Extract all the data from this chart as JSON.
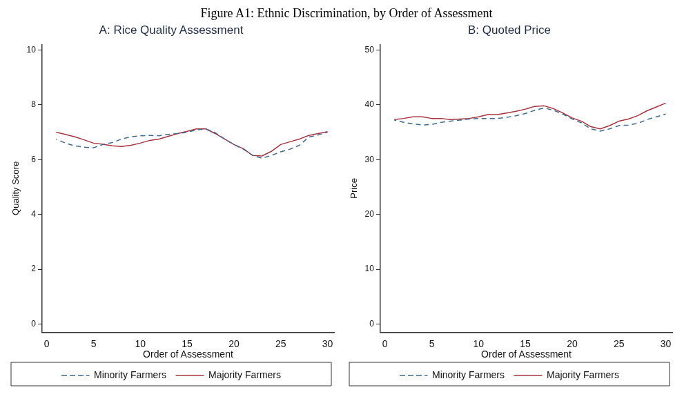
{
  "chart_data": [
    {
      "type": "line",
      "title": "A: Rice Quality Assessment",
      "annotations": [
        "Figure A1: Ethnic Discrimination, by Order of Assessment"
      ],
      "xlabel": "Order of Assessment",
      "ylabel": "Quality Score",
      "x": [
        1,
        2,
        3,
        4,
        5,
        6,
        7,
        8,
        9,
        10,
        11,
        12,
        13,
        14,
        15,
        16,
        17,
        18,
        19,
        20,
        21,
        22,
        23,
        24,
        25,
        26,
        27,
        28,
        29,
        30
      ],
      "series": [
        {
          "name": "Minority Farmers",
          "color": "#3e6a8e",
          "line_style": "dashed",
          "values": [
            6.75,
            6.6,
            6.5,
            6.45,
            6.43,
            6.55,
            6.62,
            6.75,
            6.83,
            6.87,
            6.88,
            6.87,
            6.92,
            6.95,
            7.0,
            7.08,
            7.12,
            6.98,
            6.75,
            6.55,
            6.38,
            6.15,
            6.05,
            6.15,
            6.28,
            6.38,
            6.52,
            6.82,
            6.9,
            7.0
          ]
        },
        {
          "name": "Majority Farmers",
          "color": "#a83240",
          "line_style": "solid",
          "values": [
            7.0,
            6.92,
            6.83,
            6.72,
            6.6,
            6.56,
            6.5,
            6.48,
            6.52,
            6.6,
            6.7,
            6.75,
            6.85,
            6.95,
            7.03,
            7.12,
            7.12,
            6.95,
            6.75,
            6.55,
            6.4,
            6.15,
            6.13,
            6.3,
            6.55,
            6.65,
            6.75,
            6.88,
            6.95,
            7.02
          ]
        }
      ],
      "xlim": [
        -0.5,
        30.7
      ],
      "xticks": [
        0,
        5,
        10,
        15,
        20,
        25,
        30
      ],
      "ylim": [
        -0.3,
        10.2
      ],
      "yticks": [
        0,
        2,
        4,
        6,
        8,
        10
      ],
      "legend": "bottom"
    },
    {
      "type": "line",
      "title": "B: Quoted Price",
      "xlabel": "Order of Assessment",
      "ylabel": "Price",
      "x": [
        1,
        2,
        3,
        4,
        5,
        6,
        7,
        8,
        9,
        10,
        11,
        12,
        13,
        14,
        15,
        16,
        17,
        18,
        19,
        20,
        21,
        22,
        23,
        24,
        25,
        26,
        27,
        28,
        29,
        30
      ],
      "series": [
        {
          "name": "Minority Farmers",
          "color": "#3e6a8e",
          "line_style": "dashed",
          "values": [
            37.2,
            36.8,
            36.5,
            36.3,
            36.4,
            36.8,
            37.0,
            37.2,
            37.4,
            37.5,
            37.5,
            37.5,
            37.7,
            38.0,
            38.4,
            39.0,
            39.4,
            39.0,
            38.3,
            37.4,
            36.7,
            35.6,
            35.2,
            35.6,
            36.2,
            36.3,
            36.6,
            37.3,
            37.8,
            38.3
          ]
        },
        {
          "name": "Majority Farmers",
          "color": "#a83240",
          "line_style": "solid",
          "values": [
            37.3,
            37.5,
            37.8,
            37.8,
            37.5,
            37.5,
            37.3,
            37.4,
            37.5,
            37.8,
            38.2,
            38.2,
            38.5,
            38.8,
            39.2,
            39.7,
            39.8,
            39.3,
            38.5,
            37.6,
            37.0,
            36.0,
            35.6,
            36.2,
            37.0,
            37.4,
            38.0,
            38.9,
            39.6,
            40.3
          ]
        }
      ],
      "xlim": [
        -0.5,
        30.7
      ],
      "xticks": [
        0,
        5,
        10,
        15,
        20,
        25,
        30
      ],
      "ylim": [
        -1.5,
        51
      ],
      "yticks": [
        0,
        10,
        20,
        30,
        40,
        50
      ],
      "legend": "bottom"
    }
  ]
}
